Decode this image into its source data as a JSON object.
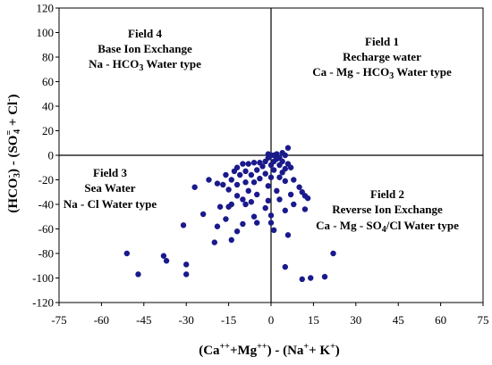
{
  "chart_data": {
    "type": "scatter",
    "xlim": [
      -75,
      75
    ],
    "ylim": [
      -120,
      120
    ],
    "x_ticks": [
      "-75",
      "-60",
      "-45",
      "-30",
      "-15",
      "0",
      "15",
      "30",
      "45",
      "60",
      "75"
    ],
    "y_ticks": [
      "120",
      "100",
      "80",
      "60",
      "40",
      "20",
      "0",
      "-20",
      "-40",
      "-60",
      "-80",
      "-100",
      "-120"
    ],
    "x_tick_values": [
      -75,
      -60,
      -45,
      -30,
      -15,
      0,
      15,
      30,
      45,
      60,
      75
    ],
    "y_tick_values": [
      120,
      100,
      80,
      60,
      40,
      20,
      0,
      -20,
      -40,
      -60,
      -80,
      -100,
      -120
    ],
    "grid": false,
    "quadrant_lines": {
      "x": 0,
      "y": 0
    },
    "xlabel": {
      "part1": "(Ca",
      "sup1": "++",
      "part2": "+Mg",
      "sup2": "++",
      "part3": ") - (Na",
      "sup3": "+",
      "part4": "+ K",
      "sup4": "+",
      "part5": ")"
    },
    "ylabel": {
      "part1": "(HCO",
      "sup1": "-",
      "sub1": "3",
      "part2": ") - (SO",
      "sup2": "=",
      "sub2": "4",
      "part3": " + Cl",
      "sup3": "-",
      "part4": ")"
    },
    "fields": [
      {
        "line1": "Field 4",
        "line2": "Base Ion Exchange",
        "line3a": "Na - HCO",
        "line3sub": "3",
        "line3b": " Water type"
      },
      {
        "line1": "Field 1",
        "line2": "Recharge water",
        "line3a": "Ca - Mg - HCO",
        "line3sub": "3",
        "line3b": " Water type"
      },
      {
        "line1": "Field 3",
        "line2": "Sea Water",
        "line3a": "Na - Cl Water type",
        "line3sub": "",
        "line3b": ""
      },
      {
        "line1": "Field 2",
        "line2": "Reverse Ion Exchange",
        "line3a": "Ca - Mg - SO",
        "line3sub": "4",
        "line3b": "/Cl Water type"
      }
    ],
    "points": [
      [
        6,
        6
      ],
      [
        5,
        0
      ],
      [
        4,
        2
      ],
      [
        2,
        1
      ],
      [
        1,
        0
      ],
      [
        0,
        0
      ],
      [
        -1,
        1
      ],
      [
        3,
        -2
      ],
      [
        2,
        -3
      ],
      [
        -1,
        -2
      ],
      [
        4,
        -5
      ],
      [
        1,
        -5
      ],
      [
        -2,
        -5
      ],
      [
        -4,
        -6
      ],
      [
        -6,
        -6
      ],
      [
        -8,
        -7
      ],
      [
        -10,
        -7
      ],
      [
        6,
        -7
      ],
      [
        3,
        -8
      ],
      [
        0,
        -8
      ],
      [
        -3,
        -9
      ],
      [
        7,
        -10
      ],
      [
        -12,
        -10
      ],
      [
        5,
        -11
      ],
      [
        1,
        -12
      ],
      [
        -5,
        -12
      ],
      [
        -9,
        -13
      ],
      [
        -13,
        -13
      ],
      [
        4,
        -14
      ],
      [
        -2,
        -15
      ],
      [
        -7,
        -16
      ],
      [
        -11,
        -16
      ],
      [
        -16,
        -16
      ],
      [
        3,
        -18
      ],
      [
        0,
        -18
      ],
      [
        -4,
        -19
      ],
      [
        -14,
        -20
      ],
      [
        8,
        -20
      ],
      [
        -22,
        -20
      ],
      [
        5,
        -21
      ],
      [
        -6,
        -22
      ],
      [
        -9,
        -22
      ],
      [
        -19,
        -23
      ],
      [
        -17,
        -24
      ],
      [
        -12,
        -24
      ],
      [
        -1,
        -25
      ],
      [
        10,
        -26
      ],
      [
        -27,
        -26
      ],
      [
        -15,
        -28
      ],
      [
        -8,
        -29
      ],
      [
        2,
        -29
      ],
      [
        11,
        -30
      ],
      [
        -5,
        -32
      ],
      [
        7,
        -32
      ],
      [
        -12,
        -33
      ],
      [
        12,
        -33
      ],
      [
        -10,
        -36
      ],
      [
        13,
        -35
      ],
      [
        3,
        -36
      ],
      [
        -1,
        -37
      ],
      [
        -7,
        -38
      ],
      [
        -14,
        -40
      ],
      [
        -9,
        -40
      ],
      [
        8,
        -40
      ],
      [
        -18,
        -42
      ],
      [
        -15,
        -42
      ],
      [
        -2,
        -43
      ],
      [
        12,
        -44
      ],
      [
        5,
        -45
      ],
      [
        -24,
        -48
      ],
      [
        0,
        -49
      ],
      [
        -6,
        -50
      ],
      [
        -16,
        -52
      ],
      [
        -5,
        -55
      ],
      [
        -10,
        -56
      ],
      [
        0,
        -55
      ],
      [
        -31,
        -57
      ],
      [
        -19,
        -58
      ],
      [
        1,
        -61
      ],
      [
        -12,
        -62
      ],
      [
        6,
        -65
      ],
      [
        -14,
        -69
      ],
      [
        -20,
        -71
      ],
      [
        -51,
        -80
      ],
      [
        -38,
        -82
      ],
      [
        22,
        -80
      ],
      [
        -37,
        -86
      ],
      [
        -30,
        -89
      ],
      [
        5,
        -91
      ],
      [
        -47,
        -97
      ],
      [
        -30,
        -97
      ],
      [
        19,
        -99
      ],
      [
        14,
        -100
      ],
      [
        11,
        -101
      ]
    ]
  }
}
